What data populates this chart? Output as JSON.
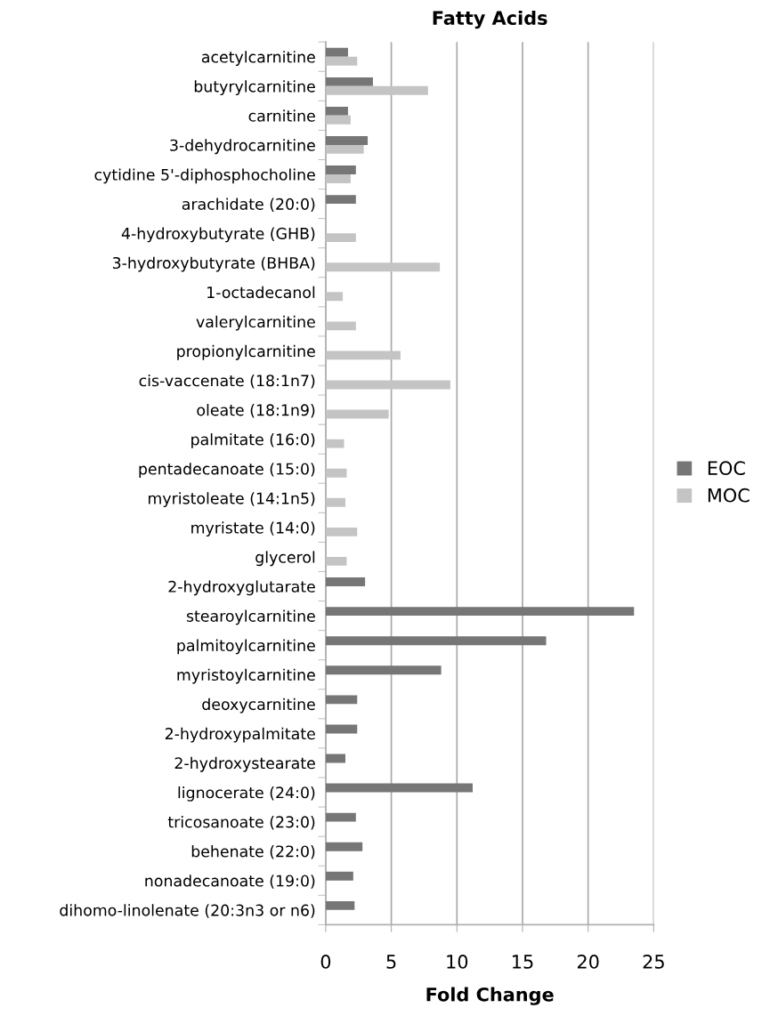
{
  "chart_data": {
    "type": "bar",
    "orientation": "horizontal",
    "title": "Fatty Acids",
    "xlabel": "Fold Change",
    "categories": [
      "acetylcarnitine",
      "butyrylcarnitine",
      "carnitine",
      "3-dehydrocarnitine",
      "cytidine 5'-diphosphocholine",
      "arachidate (20:0)",
      "4-hydroxybutyrate (GHB)",
      "3-hydroxybutyrate (BHBA)",
      "1-octadecanol",
      "valerylcarnitine",
      "propionylcarnitine",
      "cis-vaccenate (18:1n7)",
      "oleate (18:1n9)",
      "palmitate (16:0)",
      "pentadecanoate (15:0)",
      "myristoleate (14:1n5)",
      "myristate (14:0)",
      "glycerol",
      "2-hydroxyglutarate",
      "stearoylcarnitine",
      "palmitoylcarnitine",
      "myristoylcarnitine",
      "deoxycarnitine",
      "2-hydroxypalmitate",
      "2-hydroxystearate",
      "lignocerate (24:0)",
      "tricosanoate (23:0)",
      "behenate (22:0)",
      "nonadecanoate (19:0)",
      "dihomo-linolenate (20:3n3 or n6)"
    ],
    "series": [
      {
        "name": "EOC",
        "color": "#767676",
        "values": [
          1.7,
          3.6,
          1.7,
          3.2,
          2.3,
          2.3,
          null,
          null,
          null,
          null,
          null,
          null,
          null,
          null,
          null,
          null,
          null,
          null,
          3.0,
          23.5,
          16.8,
          8.8,
          2.4,
          2.4,
          1.5,
          11.2,
          2.3,
          2.8,
          2.1,
          2.2
        ]
      },
      {
        "name": "MOC",
        "color": "#c4c4c4",
        "values": [
          2.4,
          7.8,
          1.9,
          2.9,
          1.9,
          null,
          2.3,
          8.7,
          1.3,
          2.3,
          5.7,
          9.5,
          4.8,
          1.4,
          1.6,
          1.5,
          2.4,
          1.6,
          null,
          null,
          null,
          null,
          null,
          null,
          null,
          null,
          null,
          null,
          null,
          null
        ]
      }
    ],
    "xlim": [
      0,
      25
    ],
    "xticks": [
      0,
      5,
      10,
      15,
      20,
      25
    ],
    "grid": "x",
    "legend": "right"
  }
}
